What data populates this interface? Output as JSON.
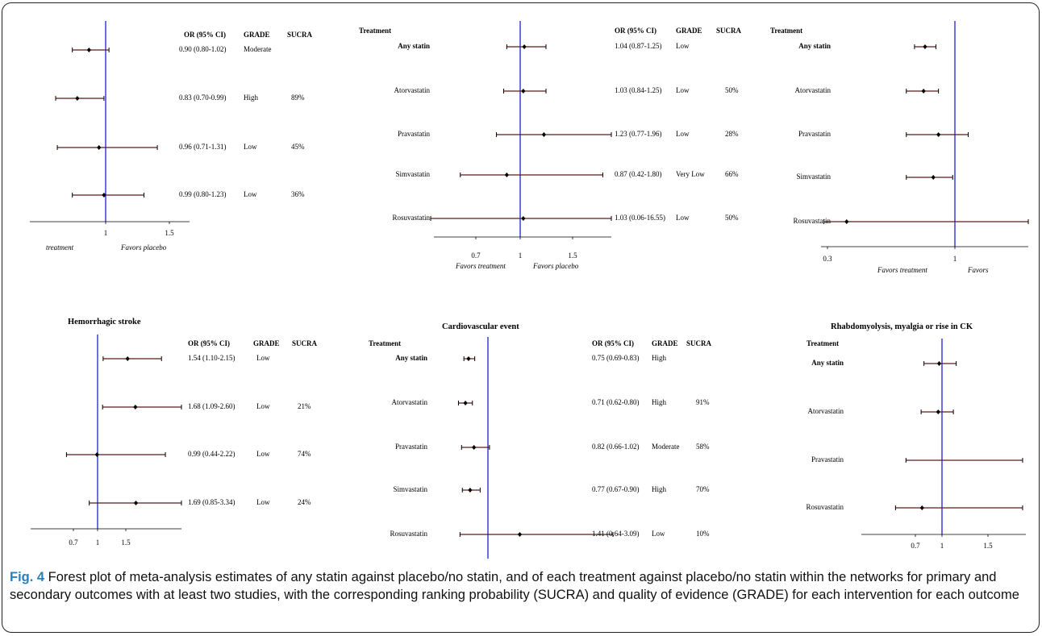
{
  "chart_data": [
    {
      "type": "forest",
      "title": "",
      "headers": {
        "treatment": "",
        "or": "OR (95% CI)",
        "grade": "GRADE",
        "sucra": "SUCRA"
      },
      "xticks": [
        "1",
        "1.5"
      ],
      "xlabel_left": "treatment",
      "xlabel_right": "Favors placebo",
      "rows": [
        {
          "label": "",
          "bold": false,
          "or": 0.9,
          "lo": 0.8,
          "hi": 1.02,
          "or_text": "0.90 (0.80-1.02)",
          "grade": "Moderate",
          "sucra": ""
        },
        {
          "label": "",
          "bold": false,
          "or": 0.83,
          "lo": 0.7,
          "hi": 0.99,
          "or_text": "0.83 (0.70-0.99)",
          "grade": "High",
          "sucra": "89%"
        },
        {
          "label": "",
          "bold": false,
          "or": 0.96,
          "lo": 0.71,
          "hi": 1.31,
          "or_text": "0.96 (0.71-1.31)",
          "grade": "Low",
          "sucra": "45%"
        },
        {
          "label": "",
          "bold": false,
          "or": 0.99,
          "lo": 0.8,
          "hi": 1.23,
          "or_text": "0.99 (0.80-1.23)",
          "grade": "Low",
          "sucra": "36%"
        }
      ]
    },
    {
      "type": "forest",
      "title": "",
      "headers": {
        "treatment": "Treatment",
        "or": "OR (95% CI)",
        "grade": "GRADE",
        "sucra": "SUCRA"
      },
      "xticks": [
        "0.7",
        "1",
        "1.5"
      ],
      "xlabel_left": "Favors treatment",
      "xlabel_right": "Favors placebo",
      "rows": [
        {
          "label": "Any statin",
          "bold": true,
          "or": 1.04,
          "lo": 0.87,
          "hi": 1.25,
          "or_text": "1.04 (0.87-1.25)",
          "grade": "Low",
          "sucra": ""
        },
        {
          "label": "Atorvastatin",
          "bold": false,
          "or": 1.03,
          "lo": 0.84,
          "hi": 1.25,
          "or_text": "1.03 (0.84-1.25)",
          "grade": "Low",
          "sucra": "50%"
        },
        {
          "label": "Pravastatin",
          "bold": false,
          "or": 1.23,
          "lo": 0.77,
          "hi": 1.96,
          "or_text": "1.23 (0.77-1.96)",
          "grade": "Low",
          "sucra": "28%"
        },
        {
          "label": "Simvastatin",
          "bold": false,
          "or": 0.87,
          "lo": 0.42,
          "hi": 1.8,
          "or_text": "0.87 (0.42-1.80)",
          "grade": "Very Low",
          "sucra": "66%"
        },
        {
          "label": "Rosuvastatin",
          "bold": false,
          "or": 1.03,
          "lo": 0.06,
          "hi": 16.55,
          "or_text": "1.03 (0.06-16.55)",
          "grade": "Low",
          "sucra": "50%"
        }
      ]
    },
    {
      "type": "forest",
      "title": "",
      "headers": {
        "treatment": "Treatment",
        "or": "",
        "grade": "",
        "sucra": ""
      },
      "xticks": [
        "0.3",
        "1"
      ],
      "xlabel_left": "Favors treatment",
      "xlabel_right": "Favors",
      "rows": [
        {
          "label": "Any statin",
          "bold": true,
          "or": 0.76,
          "lo": 0.69,
          "hi": 0.84,
          "or_text": "",
          "grade": "",
          "sucra": ""
        },
        {
          "label": "Atorvastatin",
          "bold": false,
          "or": 0.75,
          "lo": 0.64,
          "hi": 0.86,
          "or_text": "",
          "grade": "",
          "sucra": ""
        },
        {
          "label": "Pravastatin",
          "bold": false,
          "or": 0.86,
          "lo": 0.64,
          "hi": 1.13,
          "or_text": "",
          "grade": "",
          "sucra": ""
        },
        {
          "label": "Simvastatin",
          "bold": false,
          "or": 0.82,
          "lo": 0.64,
          "hi": 0.98,
          "or_text": "",
          "grade": "",
          "sucra": ""
        },
        {
          "label": "Rosuvastatin",
          "bold": false,
          "or": 0.37,
          "lo": 0.3,
          "hi": 2.0,
          "or_text": "",
          "grade": "",
          "sucra": ""
        }
      ]
    },
    {
      "type": "forest",
      "title": "Hemorrhagic stroke",
      "headers": {
        "treatment": "",
        "or": "OR (95% CI)",
        "grade": "GRADE",
        "sucra": "SUCRA"
      },
      "xticks": [
        "0.7",
        "1",
        "1.5"
      ],
      "xlabel_left": "",
      "xlabel_right": "",
      "rows": [
        {
          "label": "",
          "bold": false,
          "or": 1.54,
          "lo": 1.1,
          "hi": 2.15,
          "or_text": "1.54 (1.10-2.15)",
          "grade": "Low",
          "sucra": ""
        },
        {
          "label": "",
          "bold": false,
          "or": 1.68,
          "lo": 1.09,
          "hi": 2.6,
          "or_text": "1.68 (1.09-2.60)",
          "grade": "Low",
          "sucra": "21%"
        },
        {
          "label": "",
          "bold": false,
          "or": 0.99,
          "lo": 0.44,
          "hi": 2.22,
          "or_text": "0.99 (0.44-2.22)",
          "grade": "Low",
          "sucra": "74%"
        },
        {
          "label": "",
          "bold": false,
          "or": 1.69,
          "lo": 0.85,
          "hi": 3.34,
          "or_text": "1.69 (0.85-3.34)",
          "grade": "Low",
          "sucra": "24%"
        }
      ]
    },
    {
      "type": "forest",
      "title": "Cardiovascular event",
      "headers": {
        "treatment": "Treatment",
        "or": "OR (95% CI)",
        "grade": "GRADE",
        "sucra": "SUCRA"
      },
      "xticks": [],
      "xlabel_left": "",
      "xlabel_right": "",
      "rows": [
        {
          "label": "Any statin",
          "bold": true,
          "or": 0.75,
          "lo": 0.69,
          "hi": 0.83,
          "or_text": "0.75 (0.69-0.83)",
          "grade": "High",
          "sucra": ""
        },
        {
          "label": "Atorvastatin",
          "bold": false,
          "or": 0.71,
          "lo": 0.62,
          "hi": 0.8,
          "or_text": "0.71 (0.62-0.80)",
          "grade": "High",
          "sucra": "91%"
        },
        {
          "label": "Pravastatin",
          "bold": false,
          "or": 0.82,
          "lo": 0.66,
          "hi": 1.02,
          "or_text": "0.82 (0.66-1.02)",
          "grade": "Moderate",
          "sucra": "58%"
        },
        {
          "label": "Simvastatin",
          "bold": false,
          "or": 0.77,
          "lo": 0.67,
          "hi": 0.9,
          "or_text": "0.77 (0.67-0.90)",
          "grade": "High",
          "sucra": "70%"
        },
        {
          "label": "Rosuvastatin",
          "bold": false,
          "or": 1.41,
          "lo": 0.64,
          "hi": 3.09,
          "or_text": "1.41 (0.64-3.09)",
          "grade": "Low",
          "sucra": "10%"
        }
      ]
    },
    {
      "type": "forest",
      "title": "Rhabdomyolysis, myalgia or rise in CK",
      "headers": {
        "treatment": "Treatment",
        "or": "",
        "grade": "",
        "sucra": ""
      },
      "xticks": [
        "0.7",
        "1",
        "1.5"
      ],
      "xlabel_left": "",
      "xlabel_right": "",
      "rows": [
        {
          "label": "Any statin",
          "bold": true,
          "or": 0.97,
          "lo": 0.81,
          "hi": 1.15,
          "or_text": "",
          "grade": "",
          "sucra": ""
        },
        {
          "label": "Atorvastatin",
          "bold": false,
          "or": 0.96,
          "lo": 0.78,
          "hi": 1.12,
          "or_text": "",
          "grade": "",
          "sucra": ""
        },
        {
          "label": "Pravastatin",
          "bold": false,
          "or": null,
          "lo": 0.62,
          "hi": 1.85,
          "or_text": "",
          "grade": "",
          "sucra": ""
        },
        {
          "label": "Rosuvastatin",
          "bold": false,
          "or": 0.79,
          "lo": 0.51,
          "hi": 1.85,
          "or_text": "",
          "grade": "",
          "sucra": ""
        }
      ]
    }
  ],
  "caption": {
    "label": "Fig. 4",
    "text": " Forest plot of meta-analysis estimates of any statin against placebo/no statin, and of each treatment against placebo/no statin within the networks for primary and secondary outcomes with at least two studies, with the corresponding ranking probability (SUCRA) and quality of evidence (GRADE) for each intervention for each outcome"
  }
}
